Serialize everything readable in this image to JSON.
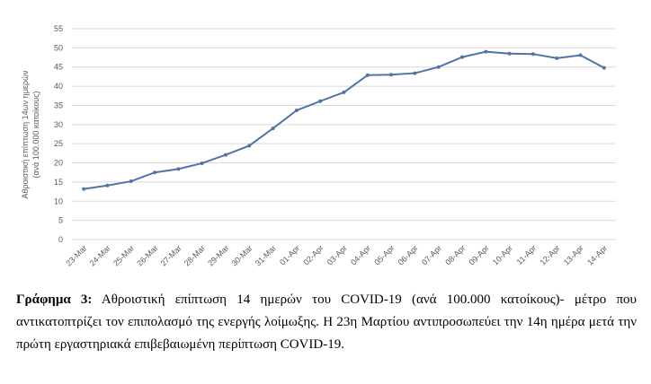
{
  "chart_data": {
    "type": "line",
    "y_label": [
      "Αθροιστική επίπτωση 14ων ημερών",
      "(ανά 100.000 κατοίκους)"
    ],
    "categories": [
      "23-Mar",
      "24-Mar",
      "25-Mar",
      "26-Mar",
      "27-Mar",
      "28-Mar",
      "29-Mar",
      "30-Mar",
      "31-Mar",
      "01-Apr",
      "02-Apr",
      "03-Apr",
      "04-Apr",
      "05-Apr",
      "06-Apr",
      "07-Apr",
      "08-Apr",
      "09-Apr",
      "10-Apr",
      "11-Apr",
      "12-Apr",
      "13-Apr",
      "14-Apr"
    ],
    "series": [
      {
        "color": "#4f74a8",
        "values": [
          13.2,
          14.1,
          15.2,
          17.5,
          18.4,
          19.9,
          22.1,
          24.5,
          29.0,
          33.7,
          36.1,
          38.4,
          42.9,
          43.0,
          43.4,
          45.0,
          47.6,
          49.0,
          48.5,
          48.4,
          47.3,
          48.1,
          44.8
        ]
      }
    ],
    "ylim": [
      0,
      55
    ],
    "yticks": [
      0,
      5,
      10,
      15,
      20,
      25,
      30,
      35,
      40,
      45,
      50,
      55
    ],
    "grid": true
  },
  "caption": {
    "label": "Γράφημα 3:",
    "text": "Αθροιστική επίπτωση 14 ημερών του COVID-19 (ανά 100.000 κατοίκους)- μέτρο που αντικατοπτρίζει τον επιπολασμό της ενεργής λοίμωξης. Η 23η Μαρτίου αντιπροσωπεύει την 14η ημέρα μετά την πρώτη εργαστηριακά επιβεβαιωμένη περίπτωση COVID-19."
  }
}
